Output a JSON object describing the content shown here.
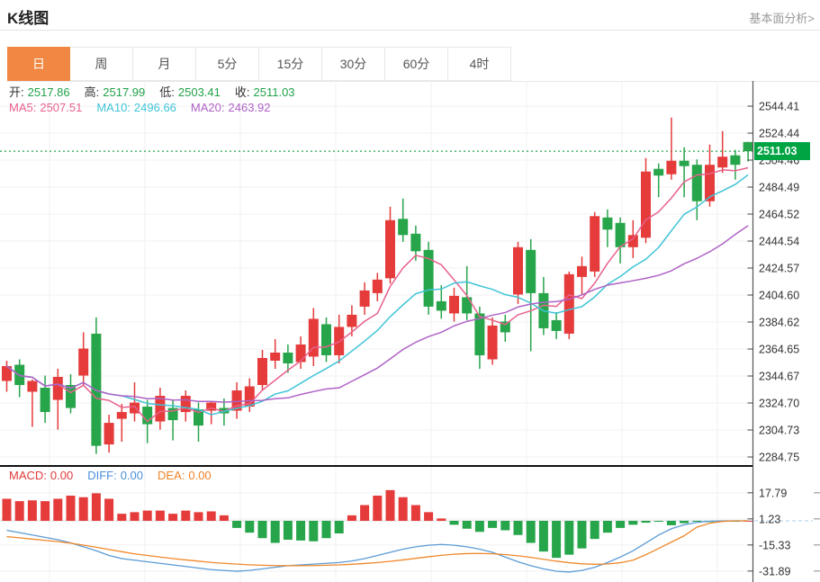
{
  "header": {
    "title": "K线图",
    "link": "基本面分析>"
  },
  "tabs": {
    "items": [
      "日",
      "周",
      "月",
      "5分",
      "15分",
      "30分",
      "60分",
      "4时"
    ],
    "active_index": 0,
    "active_bg": "#f08843"
  },
  "legend": {
    "ohlc": [
      {
        "label": "开:",
        "value": "2517.86"
      },
      {
        "label": "高:",
        "value": "2517.99"
      },
      {
        "label": "低:",
        "value": "2503.41"
      },
      {
        "label": "收:",
        "value": "2511.03"
      }
    ],
    "ohlc_value_color": "#21a24a",
    "ma": [
      {
        "label": "MA5:",
        "value": "2507.51",
        "color": "#e8618c"
      },
      {
        "label": "MA10:",
        "value": "2496.66",
        "color": "#3fc4d6"
      },
      {
        "label": "MA20:",
        "value": "2463.92",
        "color": "#af62c6"
      }
    ],
    "macd": [
      {
        "label": "MACD:",
        "value": "0.00",
        "color": "#e03a3a"
      },
      {
        "label": "DIFF:",
        "value": "0.00",
        "color": "#4a90d9"
      },
      {
        "label": "DEA:",
        "value": "0.00",
        "color": "#f08428"
      }
    ]
  },
  "price_badge": {
    "value": "2511.03",
    "bg": "#00a443"
  },
  "colors": {
    "up": "#e53b3b",
    "down": "#27a54b",
    "ma5": "#e8618c",
    "ma10": "#3fc4d6",
    "ma20": "#af62c6",
    "diff_line": "#5b9bd5",
    "dea_line": "#f0882a",
    "grid": "#f0f0f0",
    "zero_line": "#dcdcdc",
    "axis": "#555",
    "separator": "#111",
    "dotted_price": "#2aa44d",
    "dashed_zero": "#aacfe8",
    "tick_text": "#333"
  },
  "chart_data": [
    {
      "type": "candlestick",
      "title": "K线图 日线",
      "y_axis": {
        "ticks": [
          "2544.41",
          "2524.44",
          "2504.46",
          "2484.49",
          "2464.52",
          "2444.54",
          "2424.57",
          "2404.60",
          "2384.62",
          "2364.65",
          "2344.67",
          "2324.70",
          "2304.73",
          "2284.75"
        ],
        "top_price": 2544.41,
        "bottom_price": 2284.75
      },
      "current_price_line": 2511.03,
      "ma_periods": [
        5,
        10,
        20
      ],
      "legend_note": "red = up candle, green = down candle (Chinese convention)",
      "candles_ohlc": [
        [
          2341,
          2356,
          2333,
          2352
        ],
        [
          2353,
          2357,
          2329,
          2338
        ],
        [
          2333,
          2342,
          2307,
          2341
        ],
        [
          2336,
          2345,
          2310,
          2318
        ],
        [
          2327,
          2350,
          2305,
          2344
        ],
        [
          2338,
          2346,
          2317,
          2321
        ],
        [
          2345,
          2377,
          2338,
          2365
        ],
        [
          2376,
          2388,
          2287,
          2293
        ],
        [
          2294,
          2316,
          2288,
          2310
        ],
        [
          2313,
          2324,
          2296,
          2318
        ],
        [
          2317,
          2340,
          2311,
          2325
        ],
        [
          2322,
          2327,
          2295,
          2309
        ],
        [
          2311,
          2336,
          2305,
          2330
        ],
        [
          2321,
          2327,
          2297,
          2312
        ],
        [
          2318,
          2334,
          2311,
          2330
        ],
        [
          2320,
          2325,
          2296,
          2308
        ],
        [
          2319,
          2326,
          2309,
          2325
        ],
        [
          2321,
          2328,
          2308,
          2317
        ],
        [
          2319,
          2340,
          2313,
          2334
        ],
        [
          2322,
          2343,
          2318,
          2337
        ],
        [
          2338,
          2364,
          2334,
          2358
        ],
        [
          2356,
          2372,
          2350,
          2362
        ],
        [
          2362,
          2368,
          2347,
          2354
        ],
        [
          2355,
          2374,
          2350,
          2368
        ],
        [
          2359,
          2395,
          2352,
          2387
        ],
        [
          2383,
          2388,
          2355,
          2360
        ],
        [
          2360,
          2390,
          2354,
          2381
        ],
        [
          2381,
          2397,
          2374,
          2390
        ],
        [
          2396,
          2414,
          2390,
          2408
        ],
        [
          2406,
          2421,
          2400,
          2416
        ],
        [
          2417,
          2470,
          2413,
          2460
        ],
        [
          2461,
          2476,
          2444,
          2449
        ],
        [
          2450,
          2456,
          2430,
          2437
        ],
        [
          2438,
          2444,
          2390,
          2396
        ],
        [
          2400,
          2412,
          2387,
          2393
        ],
        [
          2391,
          2410,
          2385,
          2404
        ],
        [
          2403,
          2426,
          2386,
          2391
        ],
        [
          2391,
          2396,
          2350,
          2360
        ],
        [
          2357,
          2388,
          2353,
          2382
        ],
        [
          2385,
          2390,
          2370,
          2377
        ],
        [
          2405,
          2444,
          2398,
          2440
        ],
        [
          2438,
          2446,
          2363,
          2406
        ],
        [
          2406,
          2418,
          2375,
          2380
        ],
        [
          2386,
          2392,
          2372,
          2378
        ],
        [
          2376,
          2422,
          2372,
          2420
        ],
        [
          2418,
          2433,
          2405,
          2426
        ],
        [
          2422,
          2466,
          2418,
          2463
        ],
        [
          2462,
          2468,
          2440,
          2453
        ],
        [
          2458,
          2462,
          2428,
          2440
        ],
        [
          2440,
          2460,
          2432,
          2449
        ],
        [
          2447,
          2506,
          2443,
          2496
        ],
        [
          2498,
          2502,
          2477,
          2493
        ],
        [
          2494,
          2536,
          2490,
          2504
        ],
        [
          2504,
          2514,
          2477,
          2500
        ],
        [
          2501,
          2505,
          2460,
          2474
        ],
        [
          2474,
          2516,
          2470,
          2501
        ],
        [
          2499,
          2526,
          2495,
          2507
        ],
        [
          2508,
          2512,
          2490,
          2501
        ],
        [
          2517.86,
          2517.99,
          2503.41,
          2511.03
        ]
      ]
    },
    {
      "type": "bar",
      "title": "MACD",
      "y_axis": {
        "ticks": [
          "17.79",
          "1.23",
          "-15.33",
          "-31.89"
        ],
        "tick_values": [
          17.79,
          1.23,
          -15.33,
          -31.89
        ]
      },
      "histogram": [
        14,
        12.5,
        13,
        12.5,
        14,
        16,
        15,
        17.5,
        14,
        4.5,
        5.5,
        6.5,
        6.5,
        4.5,
        6.5,
        5.5,
        6,
        3.5,
        -4.5,
        -7.5,
        -11,
        -14,
        -12,
        -12.5,
        -13,
        -11,
        -8,
        3.5,
        10,
        16,
        19.5,
        15,
        10,
        5.5,
        1.5,
        -2.5,
        -5,
        -7,
        -4.5,
        -6,
        -9,
        -14,
        -19.5,
        -23.5,
        -21.5,
        -17.5,
        -11.5,
        -7.5,
        -4.5,
        -2.5,
        -1.2,
        -0.6,
        -2.8,
        -1.5,
        -0.5,
        -0.8,
        -0.3,
        -0.1,
        0
      ],
      "diff": [
        -6,
        -7.5,
        -9,
        -10.5,
        -12,
        -14,
        -16.5,
        -19,
        -22,
        -24,
        -25,
        -26,
        -27,
        -28,
        -29,
        -30,
        -31,
        -31.5,
        -32,
        -31.5,
        -30.5,
        -29.5,
        -28.5,
        -28,
        -27.5,
        -27,
        -26.5,
        -25.5,
        -24,
        -22,
        -20,
        -18,
        -16.5,
        -15.5,
        -15,
        -15.5,
        -16.5,
        -18,
        -20,
        -23,
        -26,
        -28.5,
        -30.5,
        -32,
        -32.5,
        -31.5,
        -29.5,
        -26.5,
        -23,
        -19,
        -14,
        -9,
        -5,
        -2.5,
        -1,
        -0.3,
        0,
        0,
        0
      ],
      "dea": [
        -10,
        -10.8,
        -11.6,
        -12.4,
        -13.2,
        -14.2,
        -15.4,
        -16.8,
        -18.2,
        -19.6,
        -21,
        -22,
        -23,
        -24,
        -24.8,
        -25.6,
        -26.4,
        -27,
        -27.5,
        -27.9,
        -28.2,
        -28.4,
        -28.5,
        -28.5,
        -28.4,
        -28.2,
        -28,
        -27.6,
        -27.1,
        -26.5,
        -25.7,
        -24.8,
        -23.8,
        -22.8,
        -21.9,
        -21.2,
        -20.8,
        -20.7,
        -20.9,
        -21.4,
        -22.2,
        -23.2,
        -24.4,
        -25.6,
        -26.6,
        -27.3,
        -27.6,
        -27.4,
        -26.6,
        -25,
        -21.5,
        -17.5,
        -13.5,
        -9.5,
        -4,
        -1.5,
        -0.4,
        0,
        0
      ]
    }
  ]
}
